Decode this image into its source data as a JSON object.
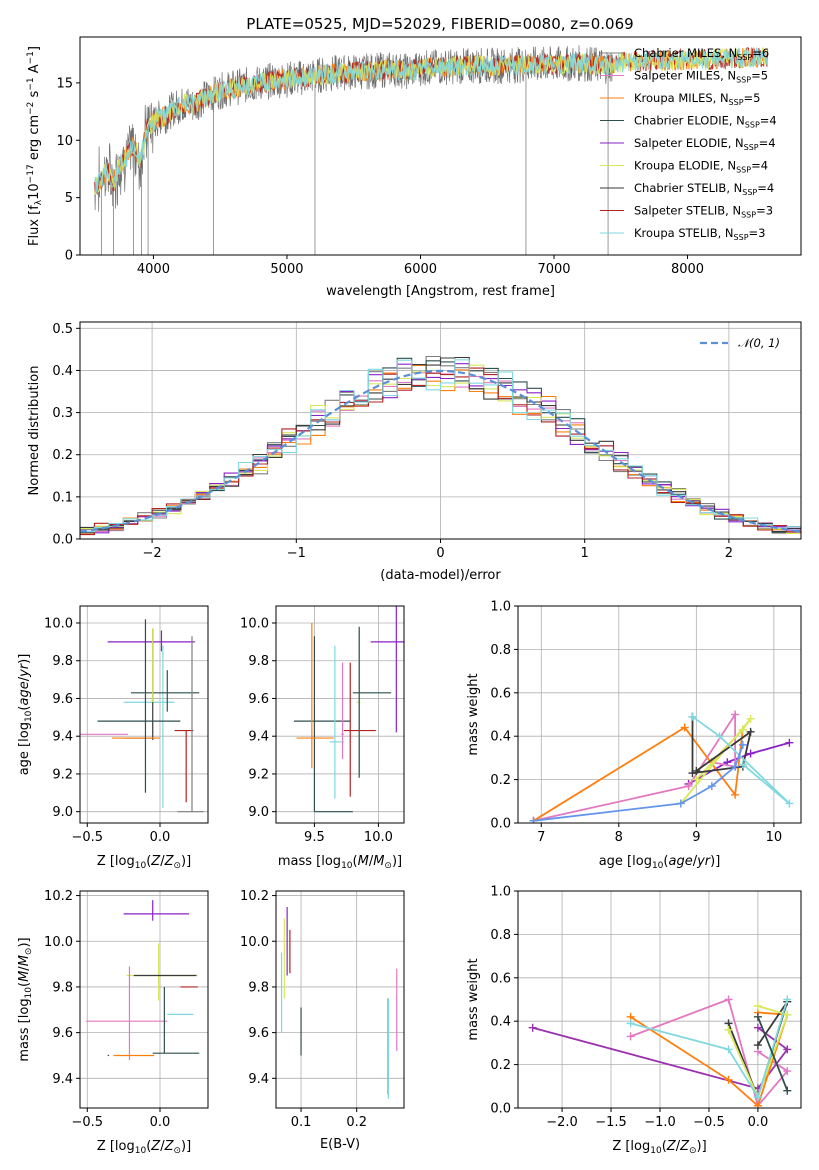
{
  "figure_title": "PLATE=0525, MJD=52029, FIBERID=0080, z=0.069",
  "colors": {
    "Chabrier MILES": "#7f7f7f",
    "Salpeter MILES": "#e377c2",
    "Kroupa MILES": "#ff7f0e",
    "Chabrier ELODIE": "#2f4f4f",
    "Salpeter ELODIE": "#8b22c9",
    "Kroupa ELODIE": "#d8e85a",
    "Chabrier STELIB": "#3a3a3a",
    "Salpeter STELIB": "#b22222",
    "Kroupa STELIB": "#80d9e0",
    "normal_fit": "#5b8fd6",
    "extra_orange": "#e07820",
    "extra_blue": "#6495ed",
    "extra_purple": "#9a30ae"
  },
  "chart_data": [
    {
      "type": "line",
      "id": "spectrum",
      "xlabel": "wavelength [Angstrom, rest frame]",
      "ylabel": "Flux [f_λ10^-17 erg cm^-2 s^-1 A^-1]",
      "xlim": [
        3450,
        8850
      ],
      "ylim": [
        0,
        19
      ],
      "xticks": [
        4000,
        5000,
        6000,
        7000,
        8000
      ],
      "yticks": [
        0,
        5,
        10,
        15
      ],
      "grid": false,
      "legend_position": "top-right",
      "legend": [
        {
          "name": "Chabrier MILES",
          "nssp": "6"
        },
        {
          "name": "Salpeter MILES",
          "nssp": "5"
        },
        {
          "name": "Kroupa MILES",
          "nssp": "5"
        },
        {
          "name": "Chabrier ELODIE",
          "nssp": "4"
        },
        {
          "name": "Salpeter ELODIE",
          "nssp": "4"
        },
        {
          "name": "Kroupa ELODIE",
          "nssp": "4"
        },
        {
          "name": "Chabrier STELIB",
          "nssp": "4"
        },
        {
          "name": "Salpeter STELIB",
          "nssp": "3"
        },
        {
          "name": "Kroupa STELIB",
          "nssp": "3"
        }
      ],
      "data_points": {
        "wavelength": [
          3560,
          3600,
          3650,
          3700,
          3750,
          3800,
          3850,
          3900,
          3950,
          4000,
          4050,
          4100,
          4150,
          4200,
          4250,
          4300,
          4350,
          4400,
          4450,
          4500,
          4600,
          4700,
          4800,
          4900,
          5000,
          5200,
          5400,
          5600,
          5800,
          5900,
          6000,
          6200,
          6400,
          6600,
          6800,
          7000,
          7200,
          7400,
          7500,
          7700,
          8000,
          8300,
          8500
        ],
        "flux": [
          6.0,
          6.5,
          7.5,
          6.2,
          8.0,
          8.5,
          9.5,
          8.0,
          11.0,
          11.5,
          12.0,
          12.2,
          12.8,
          13.0,
          13.3,
          13.0,
          13.5,
          13.8,
          14.0,
          14.3,
          14.6,
          14.8,
          15.0,
          15.2,
          15.3,
          15.6,
          15.9,
          16.0,
          16.2,
          16.0,
          16.3,
          16.4,
          16.5,
          16.5,
          16.6,
          16.6,
          16.7,
          16.5,
          16.8,
          16.9,
          17.0,
          17.1,
          17.2
        ]
      }
    },
    {
      "type": "line",
      "id": "residual_histogram",
      "xlabel": "(data-model)/error",
      "ylabel": "Normed distribution",
      "xlim": [
        -2.5,
        2.5
      ],
      "ylim": [
        0,
        0.515
      ],
      "xticks": [
        -2,
        -1,
        0,
        1,
        2
      ],
      "yticks": [
        0.0,
        0.1,
        0.2,
        0.3,
        0.4,
        0.5
      ],
      "grid": true,
      "legend_position": "top-right",
      "legend": [
        {
          "name": "𝒩(0, 1)"
        }
      ],
      "bin_width": 0.1,
      "x_range": [
        -2.5,
        2.5
      ]
    },
    {
      "type": "scatter",
      "id": "age_vs_Z",
      "xlabel": "Z [log10(Z/Z☉)]",
      "ylabel": "age [log10(age/yr)]",
      "xlim": [
        -0.55,
        0.33
      ],
      "ylim": [
        8.94,
        10.09
      ],
      "xticks": [
        -0.5,
        0.0
      ],
      "yticks": [
        9.0,
        9.2,
        9.4,
        9.6,
        9.8,
        10.0
      ],
      "grid": true,
      "points": [
        {
          "model": "Kroupa STELIB",
          "x": 0.02,
          "y": 9.58,
          "xerr": [
            0.27,
            0.08
          ],
          "yerr": [
            0.56,
            0.3
          ]
        },
        {
          "model": "Chabrier ELODIE",
          "x": 0.05,
          "y": 9.63,
          "xerr": [
            0.25,
            0.22
          ],
          "yerr": [
            0.1,
            0.12
          ]
        },
        {
          "model": "Salpeter ELODIE",
          "x": 0.01,
          "y": 9.9,
          "xerr": [
            0.37,
            0.23
          ],
          "yerr": [
            0.05,
            0.06
          ]
        },
        {
          "model": "Chabrier STELIB",
          "x": -0.05,
          "y": 9.39,
          "xerr": [
            0.2,
            0.01
          ],
          "yerr": [
            0.01,
            0.58
          ]
        },
        {
          "model": "Kroupa ELODIE",
          "x": -0.05,
          "y": 9.59,
          "xerr": [
            0.01,
            0.01
          ],
          "yerr": [
            0.01,
            0.38
          ]
        },
        {
          "model": "Salpeter STELIB",
          "x": 0.18,
          "y": 9.43,
          "xerr": [
            0.08,
            0.05
          ],
          "yerr": [
            0.38,
            0.0
          ]
        },
        {
          "model": "Chabrier MILES",
          "x": 0.22,
          "y": 9.0,
          "xerr": [
            0.1,
            0.08
          ],
          "yerr": [
            0.0,
            0.93
          ]
        },
        {
          "model": "Kroupa MILES",
          "x": -0.3,
          "y": 9.39,
          "xerr": [
            0.03,
            0.3
          ],
          "yerr": [
            0.0,
            0.0
          ]
        },
        {
          "model": "Salpeter MILES",
          "x": -0.44,
          "y": 9.41,
          "xerr": [
            0.2,
            0.22
          ],
          "yerr": [
            0.0,
            0.0
          ]
        },
        {
          "model": "Chabrier ELODIE",
          "x": -0.1,
          "y": 9.48,
          "xerr": [
            0.33,
            0.24
          ],
          "yerr": [
            0.38,
            0.54
          ]
        }
      ]
    },
    {
      "type": "scatter",
      "id": "age_vs_mass",
      "xlabel": "mass [log10(M/M☉)]",
      "ylabel": "",
      "xlim": [
        9.2,
        10.2
      ],
      "ylim": [
        8.94,
        10.09
      ],
      "xticks": [
        9.5,
        10.0
      ],
      "yticks": [
        9.0,
        9.2,
        9.4,
        9.6,
        9.8,
        10.0
      ],
      "grid": true,
      "points": [
        {
          "model": "Chabrier ELODIE",
          "x": 9.5,
          "y": 9.0,
          "xerr": [
            0.0,
            0.3
          ],
          "yerr": [
            0.0,
            0.93
          ]
        },
        {
          "model": "Chabrier ELODIE",
          "x": 9.58,
          "y": 9.48,
          "xerr": [
            0.24,
            0.2
          ],
          "yerr": [
            0.0,
            0.0
          ]
        },
        {
          "model": "Kroupa MILES",
          "x": 9.48,
          "y": 9.39,
          "xerr": [
            0.12,
            0.17
          ],
          "yerr": [
            0.16,
            0.61
          ]
        },
        {
          "model": "Kroupa STELIB",
          "x": 9.66,
          "y": 9.37,
          "xerr": [
            0.04,
            0.07
          ],
          "yerr": [
            0.3,
            0.51
          ]
        },
        {
          "model": "Salpeter MILES",
          "x": 9.72,
          "y": 9.41,
          "xerr": [
            0.01,
            0.01
          ],
          "yerr": [
            0.13,
            0.38
          ]
        },
        {
          "model": "Salpeter STELIB",
          "x": 9.78,
          "y": 9.43,
          "xerr": [
            0.05,
            0.2
          ],
          "yerr": [
            0.35,
            0.36
          ]
        },
        {
          "model": "Kroupa ELODIE",
          "x": 9.85,
          "y": 9.58,
          "xerr": [
            0.02,
            0.01
          ],
          "yerr": [
            0.38,
            0.38
          ]
        },
        {
          "model": "Chabrier ELODIE",
          "x": 9.85,
          "y": 9.63,
          "xerr": [
            0.05,
            0.25
          ],
          "yerr": [
            0.45,
            0.35
          ]
        },
        {
          "model": "Salpeter ELODIE",
          "x": 10.14,
          "y": 9.9,
          "xerr": [
            0.2,
            0.06
          ],
          "yerr": [
            0.48,
            0.24
          ]
        }
      ]
    },
    {
      "type": "line",
      "id": "mass_weight_vs_age",
      "xlabel": "age [log10(age/yr)]",
      "ylabel": "mass weight",
      "xlim": [
        6.7,
        10.35
      ],
      "ylim": [
        0.0,
        1.0
      ],
      "xticks": [
        7,
        8,
        9,
        10
      ],
      "yticks": [
        0.0,
        0.2,
        0.4,
        0.6,
        0.8,
        1.0
      ],
      "grid": true,
      "series": [
        {
          "model": "Salpeter ELODIE",
          "x": [
            8.9,
            9.4,
            9.7,
            10.2
          ],
          "y": [
            0.18,
            0.28,
            0.32,
            0.37
          ]
        },
        {
          "model": "Salpeter MILES",
          "x": [
            6.9,
            8.9,
            9.5,
            9.5,
            9.2
          ],
          "y": [
            0.01,
            0.17,
            0.5,
            0.26,
            0.28
          ]
        },
        {
          "model": "Kroupa MILES",
          "x": [
            6.9,
            8.85,
            9.5,
            9.6,
            9.2
          ],
          "y": [
            0.01,
            0.44,
            0.13,
            0.43,
            0.28
          ]
        },
        {
          "model": "Kroupa ELODIE",
          "x": [
            8.8,
            9.7,
            9.6,
            9.0
          ],
          "y": [
            0.09,
            0.48,
            0.43,
            0.2
          ]
        },
        {
          "model": "Chabrier STELIB",
          "x": [
            8.95,
            8.95,
            9.6,
            9.7,
            9.0
          ],
          "y": [
            0.49,
            0.23,
            0.26,
            0.42,
            0.24
          ]
        },
        {
          "model": "Kroupa STELIB",
          "x": [
            8.95,
            9.3,
            10.2,
            9.6
          ],
          "y": [
            0.49,
            0.4,
            0.09,
            0.27
          ]
        },
        {
          "model": "extra",
          "x": [
            6.9,
            8.8,
            9.2,
            9.5,
            9.6
          ],
          "y": [
            0.01,
            0.09,
            0.17,
            0.26,
            0.36
          ]
        }
      ]
    },
    {
      "type": "scatter",
      "id": "mass_vs_Z",
      "xlabel": "Z [log10(Z/Z☉)]",
      "ylabel": "mass [log10(M/M☉)]",
      "xlim": [
        -0.55,
        0.33
      ],
      "ylim": [
        9.27,
        10.22
      ],
      "xticks": [
        -0.5,
        0.0
      ],
      "yticks": [
        9.4,
        9.6,
        9.8,
        10.0,
        10.2
      ],
      "grid": true,
      "points": [
        {
          "model": "Salpeter ELODIE",
          "x": -0.05,
          "y": 10.12,
          "xerr": [
            0.2,
            0.25
          ],
          "yerr": [
            0.03,
            0.06
          ]
        },
        {
          "model": "Kroupa ELODIE",
          "x": -0.01,
          "y": 9.85,
          "xerr": [
            0.22,
            0.27
          ],
          "yerr": [
            0.11,
            0.14
          ]
        },
        {
          "model": "Chabrier STELIB",
          "x": 0.05,
          "y": 9.85,
          "xerr": [
            0.23,
            0.2
          ],
          "yerr": [
            0.0,
            0.0
          ]
        },
        {
          "model": "Salpeter STELIB",
          "x": 0.14,
          "y": 9.8,
          "xerr": [
            0.0,
            0.12
          ],
          "yerr": [
            0.0,
            0.0
          ]
        },
        {
          "model": "Kroupa STELIB",
          "x": 0.16,
          "y": 9.68,
          "xerr": [
            0.11,
            0.07
          ],
          "yerr": [
            0.0,
            0.0
          ]
        },
        {
          "model": "Salpeter MILES",
          "x": -0.21,
          "y": 9.65,
          "xerr": [
            0.3,
            0.26
          ],
          "yerr": [
            0.17,
            0.24
          ]
        },
        {
          "model": "Chabrier ELODIE",
          "x": 0.03,
          "y": 9.51,
          "xerr": [
            0.08,
            0.24
          ],
          "yerr": [
            0.0,
            0.29
          ]
        },
        {
          "model": "Kroupa MILES",
          "x": -0.18,
          "y": 9.5,
          "xerr": [
            0.14,
            0.14
          ],
          "yerr": [
            0.0,
            0.0
          ]
        },
        {
          "model": "Chabrier ELODIE",
          "x": -0.35,
          "y": 9.5,
          "xerr": [
            0.01,
            0.0
          ],
          "yerr": [
            0.0,
            0.0
          ]
        }
      ]
    },
    {
      "type": "scatter",
      "id": "mass_vs_ebv",
      "xlabel": "E(B-V)",
      "ylabel": "",
      "xlim": [
        0.055,
        0.285
      ],
      "ylim": [
        9.27,
        10.22
      ],
      "xticks": [
        0.1,
        0.2
      ],
      "yticks": [
        9.4,
        9.6,
        9.8,
        10.0,
        10.2
      ],
      "grid": true,
      "points": [
        {
          "model": "Salpeter ELODIE",
          "x": 0.075,
          "y": 10.05,
          "yerr": [
            0.2,
            0.1
          ]
        },
        {
          "model": "Kroupa ELODIE",
          "x": 0.07,
          "y": 9.9,
          "yerr": [
            0.15,
            0.2
          ]
        },
        {
          "model": "Salpeter STELIB",
          "x": 0.08,
          "y": 9.95,
          "yerr": [
            0.09,
            0.1
          ]
        },
        {
          "model": "Kroupa STELIB",
          "x": 0.065,
          "y": 9.7,
          "yerr": [
            0.1,
            0.25
          ]
        },
        {
          "model": "Chabrier ELODIE",
          "x": 0.1,
          "y": 9.62,
          "yerr": [
            0.12,
            0.09
          ]
        },
        {
          "model": "Kroupa MILES",
          "x": 0.256,
          "y": 9.5,
          "yerr": [
            0.17,
            0.25
          ]
        },
        {
          "model": "Salpeter MILES",
          "x": 0.272,
          "y": 9.7,
          "yerr": [
            0.18,
            0.18
          ]
        },
        {
          "model": "Kroupa STELIB",
          "x": 0.257,
          "y": 9.55,
          "yerr": [
            0.24,
            0.2
          ]
        }
      ]
    },
    {
      "type": "line",
      "id": "mass_weight_vs_Z",
      "xlabel": "Z [log10(Z/Z☉)]",
      "ylabel": "mass weight",
      "xlim": [
        -2.45,
        0.44
      ],
      "ylim": [
        0.0,
        1.0
      ],
      "xticks": [
        -2.0,
        -1.5,
        -1.0,
        -0.5,
        0.0
      ],
      "yticks": [
        0.0,
        0.2,
        0.4,
        0.6,
        0.8,
        1.0
      ],
      "grid": true,
      "series": [
        {
          "model": "extra",
          "x": [
            -2.3,
            0.0,
            0.3,
            0.0
          ],
          "y": [
            0.37,
            0.09,
            0.27,
            0.37
          ]
        },
        {
          "model": "Salpeter MILES",
          "x": [
            -1.3,
            -0.3,
            0.0,
            0.3,
            0.0
          ],
          "y": [
            0.33,
            0.5,
            0.01,
            0.17,
            0.26
          ]
        },
        {
          "model": "Kroupa MILES",
          "x": [
            -1.3,
            -0.3,
            0.0,
            0.3,
            0.0
          ],
          "y": [
            0.42,
            0.13,
            0.01,
            0.43,
            0.44
          ]
        },
        {
          "model": "Chabrier STELIB",
          "x": [
            -0.3,
            0.0,
            0.3,
            0.0
          ],
          "y": [
            0.39,
            0.05,
            0.49,
            0.29
          ]
        },
        {
          "model": "Kroupa ELODIE",
          "x": [
            -0.3,
            0.0,
            0.3,
            0.0
          ],
          "y": [
            0.36,
            0.05,
            0.43,
            0.47
          ]
        },
        {
          "model": "Kroupa STELIB",
          "x": [
            -1.3,
            -0.3,
            0.0,
            0.3
          ],
          "y": [
            0.39,
            0.27,
            0.05,
            0.5
          ]
        },
        {
          "model": "Chabrier ELODIE",
          "x": [
            0.0,
            0.3
          ],
          "y": [
            0.42,
            0.08
          ]
        }
      ]
    }
  ]
}
